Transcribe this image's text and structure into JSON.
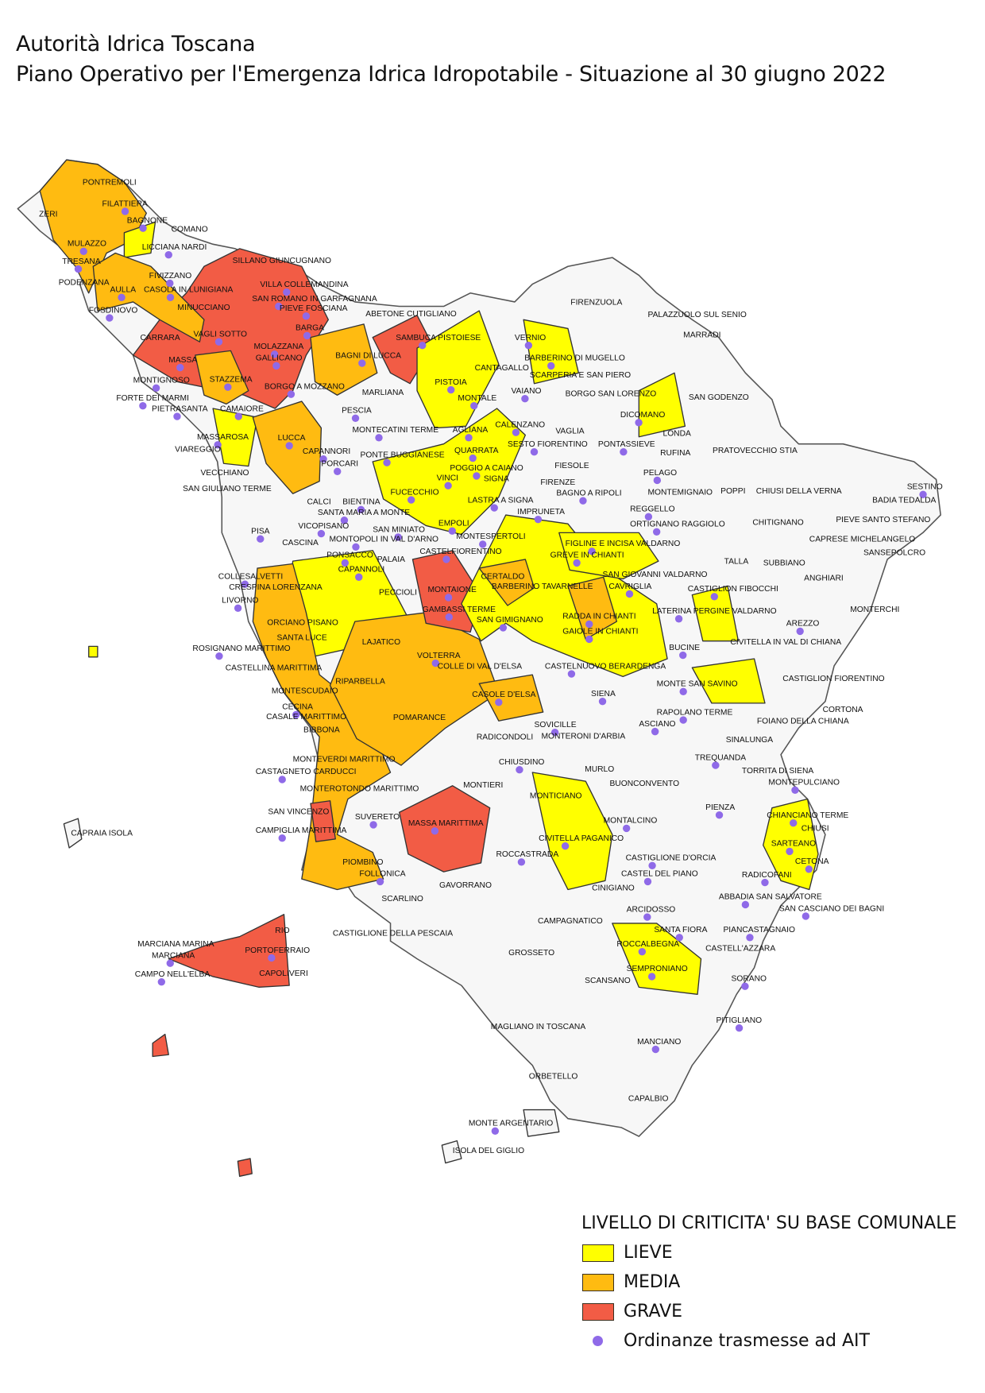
{
  "header": {
    "title": "Autorità Idrica Toscana",
    "subtitle": "Piano Operativo per l'Emergenza Idrica Idropotabile - Situazione al 30 giugno 2022"
  },
  "legend": {
    "title": "LIVELLO DI CRITICITA' SU BASE COMUNALE",
    "items": [
      {
        "label": "LIEVE",
        "color": "#ffff00"
      },
      {
        "label": "MEDIA",
        "color": "#ffbb11"
      },
      {
        "label": "GRAVE",
        "color": "#f25c45"
      }
    ],
    "ordinanze": {
      "label": "Ordinanze trasmesse ad AIT",
      "color": "#8f6ae8"
    }
  },
  "colors": {
    "none": "#f7f7f7",
    "border": "#333333",
    "outer_border": "#888888"
  },
  "comuni": [
    {
      "name": "PONTREMOLI",
      "ord": false
    },
    {
      "name": "ZERI",
      "ord": false
    },
    {
      "name": "FILATTIERA",
      "ord": true
    },
    {
      "name": "BAGNONE",
      "ord": true
    },
    {
      "name": "COMANO",
      "ord": false
    },
    {
      "name": "MULAZZO",
      "ord": true
    },
    {
      "name": "LICCIANA NARDI",
      "ord": true
    },
    {
      "name": "TRESANA",
      "ord": true
    },
    {
      "name": "SILLANO GIUNCUGNANO",
      "ord": false
    },
    {
      "name": "FIVIZZANO",
      "ord": true
    },
    {
      "name": "PODENZANA",
      "ord": false
    },
    {
      "name": "AULLA",
      "ord": true
    },
    {
      "name": "CASOLA IN LUNIGIANA",
      "ord": true
    },
    {
      "name": "VILLA COLLEMANDINA",
      "ord": true
    },
    {
      "name": "SAN ROMANO IN GARFAGNANA",
      "ord": true
    },
    {
      "name": "FOSDINOVO",
      "ord": true
    },
    {
      "name": "MINUCCIANO",
      "ord": false
    },
    {
      "name": "PIEVE FOSCIANA",
      "ord": true
    },
    {
      "name": "ABETONE CUTIGLIANO",
      "ord": false
    },
    {
      "name": "FIRENZUOLA",
      "ord": false
    },
    {
      "name": "PALAZZUOLO SUL SENIO",
      "ord": false
    },
    {
      "name": "CARRARA",
      "ord": false
    },
    {
      "name": "VAGLI SOTTO",
      "ord": true
    },
    {
      "name": "BARGA",
      "ord": true
    },
    {
      "name": "SAMBUCA PISTOIESE",
      "ord": true
    },
    {
      "name": "VERNIO",
      "ord": true
    },
    {
      "name": "MARRADI",
      "ord": false
    },
    {
      "name": "MOLAZZANA",
      "ord": true
    },
    {
      "name": "GALLICANO",
      "ord": true
    },
    {
      "name": "MASSA",
      "ord": true
    },
    {
      "name": "BAGNI DI LUCCA",
      "ord": true
    },
    {
      "name": "BARBERINO DI MUGELLO",
      "ord": true
    },
    {
      "name": "CANTAGALLO",
      "ord": false
    },
    {
      "name": "MONTIGNOSO",
      "ord": true
    },
    {
      "name": "STAZZEMA",
      "ord": true
    },
    {
      "name": "SCARPERIA E SAN PIERO",
      "ord": false
    },
    {
      "name": "PISTOIA",
      "ord": true
    },
    {
      "name": "BORGO A MOZZANO",
      "ord": true
    },
    {
      "name": "VAIANO",
      "ord": true
    },
    {
      "name": "MARLIANA",
      "ord": false
    },
    {
      "name": "BORGO SAN LORENZO",
      "ord": false
    },
    {
      "name": "FORTE DEI MARMI",
      "ord": true
    },
    {
      "name": "MONTALE",
      "ord": true
    },
    {
      "name": "SAN GODENZO",
      "ord": false
    },
    {
      "name": "PIETRASANTA",
      "ord": true
    },
    {
      "name": "CAMAIORE",
      "ord": true
    },
    {
      "name": "PESCIA",
      "ord": true
    },
    {
      "name": "DICOMANO",
      "ord": true
    },
    {
      "name": "CALENZANO",
      "ord": true
    },
    {
      "name": "MONTECATINI TERME",
      "ord": true
    },
    {
      "name": "AGLIANA",
      "ord": true
    },
    {
      "name": "VAGLIA",
      "ord": false
    },
    {
      "name": "LONDA",
      "ord": false
    },
    {
      "name": "MASSAROSA",
      "ord": true
    },
    {
      "name": "LUCCA",
      "ord": true
    },
    {
      "name": "SESTO FIORENTINO",
      "ord": true
    },
    {
      "name": "PONTASSIEVE",
      "ord": true
    },
    {
      "name": "VIAREGGIO",
      "ord": false
    },
    {
      "name": "CAPANNORI",
      "ord": true
    },
    {
      "name": "QUARRATA",
      "ord": true
    },
    {
      "name": "RUFINA",
      "ord": false
    },
    {
      "name": "PRATOVECCHIO STIA",
      "ord": false
    },
    {
      "name": "PONTE BUGGIANESE",
      "ord": true
    },
    {
      "name": "PORCARI",
      "ord": true
    },
    {
      "name": "FIESOLE",
      "ord": false
    },
    {
      "name": "POGGIO A CAIANO",
      "ord": true
    },
    {
      "name": "VECCHIANO",
      "ord": false
    },
    {
      "name": "SIGNA",
      "ord": false
    },
    {
      "name": "VINCI",
      "ord": true
    },
    {
      "name": "FIRENZE",
      "ord": false
    },
    {
      "name": "PELAGO",
      "ord": true
    },
    {
      "name": "SAN GIULIANO TERME",
      "ord": false
    },
    {
      "name": "FUCECCHIO",
      "ord": true
    },
    {
      "name": "BAGNO A RIPOLI",
      "ord": true
    },
    {
      "name": "MONTEMIGNAIO",
      "ord": false
    },
    {
      "name": "POPPI",
      "ord": false
    },
    {
      "name": "CHIUSI DELLA VERNA",
      "ord": false
    },
    {
      "name": "SESTINO",
      "ord": true
    },
    {
      "name": "BADIA TEDALDA",
      "ord": false
    },
    {
      "name": "CALCI",
      "ord": false
    },
    {
      "name": "BIENTINA",
      "ord": true
    },
    {
      "name": "LASTRA A SIGNA",
      "ord": true
    },
    {
      "name": "SANTA MARIA A MONTE",
      "ord": true
    },
    {
      "name": "IMPRUNETA",
      "ord": true
    },
    {
      "name": "REGGELLO",
      "ord": true
    },
    {
      "name": "EMPOLI",
      "ord": true
    },
    {
      "name": "VICOPISANO",
      "ord": true
    },
    {
      "name": "ORTIGNANO RAGGIOLO",
      "ord": true
    },
    {
      "name": "CHITIGNANO",
      "ord": false
    },
    {
      "name": "PIEVE SANTO STEFANO",
      "ord": false
    },
    {
      "name": "PISA",
      "ord": true
    },
    {
      "name": "SAN MINIATO",
      "ord": true
    },
    {
      "name": "MONTESPERTOLI",
      "ord": true
    },
    {
      "name": "CASCINA",
      "ord": false
    },
    {
      "name": "MONTOPOLI IN VAL D'ARNO",
      "ord": true
    },
    {
      "name": "FIGLINE E INCISA VALDARNO",
      "ord": true
    },
    {
      "name": "CAPRESE MICHELANGELO",
      "ord": false
    },
    {
      "name": "CASTELFIORENTINO",
      "ord": true
    },
    {
      "name": "SANSEPOLCRO",
      "ord": false
    },
    {
      "name": "GREVE IN CHIANTI",
      "ord": true
    },
    {
      "name": "PONSACCO",
      "ord": true
    },
    {
      "name": "PALAIA",
      "ord": false
    },
    {
      "name": "TALLA",
      "ord": false
    },
    {
      "name": "SUBBIANO",
      "ord": false
    },
    {
      "name": "CAPANNOLI",
      "ord": true
    },
    {
      "name": "SAN GIOVANNI VALDARNO",
      "ord": false
    },
    {
      "name": "CERTALDO",
      "ord": false
    },
    {
      "name": "COLLESALVETTI",
      "ord": true
    },
    {
      "name": "ANGHIARI",
      "ord": false
    },
    {
      "name": "CAVRIGLIA",
      "ord": true
    },
    {
      "name": "CASTIGLION FIBOCCHI",
      "ord": true
    },
    {
      "name": "MONTAIONE",
      "ord": true
    },
    {
      "name": "BARBERINO TAVARNELLE",
      "ord": false
    },
    {
      "name": "CRESPINA LORENZANA",
      "ord": false
    },
    {
      "name": "PECCIOLI",
      "ord": false
    },
    {
      "name": "LIVORNO",
      "ord": true
    },
    {
      "name": "GAMBASSI TERME",
      "ord": true
    },
    {
      "name": "MONTERCHI",
      "ord": false
    },
    {
      "name": "LATERINA PERGINE VALDARNO",
      "ord": true
    },
    {
      "name": "RADDA IN CHIANTI",
      "ord": true
    },
    {
      "name": "ORCIANO PISANO",
      "ord": false
    },
    {
      "name": "SAN GIMIGNANO",
      "ord": true
    },
    {
      "name": "AREZZO",
      "ord": true
    },
    {
      "name": "GAIOLE IN CHIANTI",
      "ord": true
    },
    {
      "name": "SANTA LUCE",
      "ord": false
    },
    {
      "name": "LAJATICO",
      "ord": false
    },
    {
      "name": "CIVITELLA IN VAL DI CHIANA",
      "ord": false
    },
    {
      "name": "ROSIGNANO MARITTIMO",
      "ord": true
    },
    {
      "name": "BUCINE",
      "ord": true
    },
    {
      "name": "VOLTERRA",
      "ord": true
    },
    {
      "name": "CASTELLINA MARITTIMA",
      "ord": false
    },
    {
      "name": "COLLE DI VAL D'ELSA",
      "ord": false
    },
    {
      "name": "CASTELNUOVO BERARDENGA",
      "ord": true
    },
    {
      "name": "CASTIGLION FIORENTINO",
      "ord": false
    },
    {
      "name": "RIPARBELLA",
      "ord": false
    },
    {
      "name": "MONTE SAN SAVINO",
      "ord": true
    },
    {
      "name": "MONTESCUDAIO",
      "ord": false
    },
    {
      "name": "SIENA",
      "ord": true
    },
    {
      "name": "CASOLE D'ELSA",
      "ord": true
    },
    {
      "name": "CECINA",
      "ord": true
    },
    {
      "name": "CORTONA",
      "ord": false
    },
    {
      "name": "RAPOLANO TERME",
      "ord": true
    },
    {
      "name": "CASALE MARITTIMO",
      "ord": false
    },
    {
      "name": "POMARANCE",
      "ord": false
    },
    {
      "name": "ASCIANO",
      "ord": true
    },
    {
      "name": "FOIANO DELLA CHIANA",
      "ord": false
    },
    {
      "name": "SOVICILLE",
      "ord": true
    },
    {
      "name": "BIBBONA",
      "ord": false
    },
    {
      "name": "RADICONDOLI",
      "ord": false
    },
    {
      "name": "MONTERONI D'ARBIA",
      "ord": false
    },
    {
      "name": "SINALUNGA",
      "ord": false
    },
    {
      "name": "MONTEVERDI MARITTIMO",
      "ord": false
    },
    {
      "name": "TREQUANDA",
      "ord": true
    },
    {
      "name": "CHIUSDINO",
      "ord": true
    },
    {
      "name": "CASTAGNETO CARDUCCI",
      "ord": true
    },
    {
      "name": "MURLO",
      "ord": false
    },
    {
      "name": "TORRITA DI SIENA",
      "ord": false
    },
    {
      "name": "MONTIERI",
      "ord": false
    },
    {
      "name": "BUONCONVENTO",
      "ord": false
    },
    {
      "name": "MONTEPULCIANO",
      "ord": true
    },
    {
      "name": "MONTEROTONDO MARITTIMO",
      "ord": false
    },
    {
      "name": "MONTICIANO",
      "ord": false
    },
    {
      "name": "SAN VINCENZO",
      "ord": false
    },
    {
      "name": "PIENZA",
      "ord": true
    },
    {
      "name": "CHIANCIANO TERME",
      "ord": true
    },
    {
      "name": "SUVERETO",
      "ord": true
    },
    {
      "name": "MONTALCINO",
      "ord": true
    },
    {
      "name": "MASSA MARITTIMA",
      "ord": true
    },
    {
      "name": "CHIUSI",
      "ord": false
    },
    {
      "name": "CAPRAIA ISOLA",
      "ord": false
    },
    {
      "name": "CAMPIGLIA MARITTIMA",
      "ord": true
    },
    {
      "name": "CIVITELLA PAGANICO",
      "ord": true
    },
    {
      "name": "SARTEANO",
      "ord": true
    },
    {
      "name": "ROCCASTRADA",
      "ord": true
    },
    {
      "name": "CASTIGLIONE D'ORCIA",
      "ord": true
    },
    {
      "name": "PIOMBINO",
      "ord": false
    },
    {
      "name": "CETONA",
      "ord": true
    },
    {
      "name": "FOLLONICA",
      "ord": true
    },
    {
      "name": "CASTEL DEL PIANO",
      "ord": true
    },
    {
      "name": "RADICOFANI",
      "ord": true
    },
    {
      "name": "GAVORRANO",
      "ord": false
    },
    {
      "name": "CINIGIANO",
      "ord": false
    },
    {
      "name": "SCARLINO",
      "ord": false
    },
    {
      "name": "ABBADIA SAN SALVATORE",
      "ord": true
    },
    {
      "name": "ARCIDOSSO",
      "ord": true
    },
    {
      "name": "SAN CASCIANO DEI BAGNI",
      "ord": true
    },
    {
      "name": "CAMPAGNATICO",
      "ord": false
    },
    {
      "name": "SANTA FIORA",
      "ord": true
    },
    {
      "name": "PIANCASTAGNAIO",
      "ord": true
    },
    {
      "name": "RIO",
      "ord": false
    },
    {
      "name": "CASTIGLIONE DELLA PESCAIA",
      "ord": false
    },
    {
      "name": "MARCIANA MARINA",
      "ord": false
    },
    {
      "name": "ROCCALBEGNA",
      "ord": true
    },
    {
      "name": "CASTELL'AZZARA",
      "ord": false
    },
    {
      "name": "PORTOFERRAIO",
      "ord": true
    },
    {
      "name": "GROSSETO",
      "ord": false
    },
    {
      "name": "MARCIANA",
      "ord": true
    },
    {
      "name": "SEMPRONIANO",
      "ord": true
    },
    {
      "name": "CAPOLIVERI",
      "ord": false
    },
    {
      "name": "CAMPO NELL'ELBA",
      "ord": true
    },
    {
      "name": "SCANSANO",
      "ord": false
    },
    {
      "name": "SORANO",
      "ord": true
    },
    {
      "name": "PITIGLIANO",
      "ord": true
    },
    {
      "name": "MAGLIANO IN TOSCANA",
      "ord": false
    },
    {
      "name": "MANCIANO",
      "ord": true
    },
    {
      "name": "ORBETELLO",
      "ord": false
    },
    {
      "name": "CAPALBIO",
      "ord": false
    },
    {
      "name": "MONTE ARGENTARIO",
      "ord": true
    },
    {
      "name": "ISOLA DEL GIGLIO",
      "ord": false
    }
  ]
}
